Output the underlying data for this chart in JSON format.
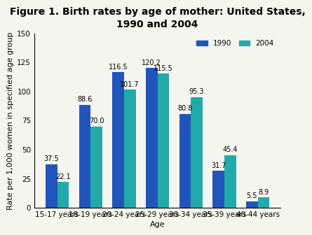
{
  "title": "Figure 1. Birth rates by age of mother: United States,\n1990 and 2004",
  "xlabel": "Age",
  "ylabel": "Rate per 1,000 women in specified age group",
  "categories": [
    "15-17 years",
    "18-19 years",
    "20-24 years",
    "25-29 years",
    "30-34 years",
    "35-39 years",
    "40-44 years"
  ],
  "values_1990": [
    37.5,
    88.6,
    116.5,
    120.2,
    80.8,
    31.7,
    5.5
  ],
  "values_2004": [
    22.1,
    70.0,
    101.7,
    115.5,
    95.3,
    45.4,
    8.9
  ],
  "color_1990": "#2255bb",
  "color_2004": "#22aaaa",
  "ylim": [
    0,
    150
  ],
  "yticks": [
    0,
    25,
    50,
    75,
    100,
    125,
    150
  ],
  "bar_width": 0.35,
  "legend_labels": [
    "1990",
    "2004"
  ],
  "title_fontsize": 10,
  "axis_label_fontsize": 8,
  "tick_fontsize": 7.5,
  "value_label_fontsize": 7,
  "background_color": "#f5f5f0"
}
